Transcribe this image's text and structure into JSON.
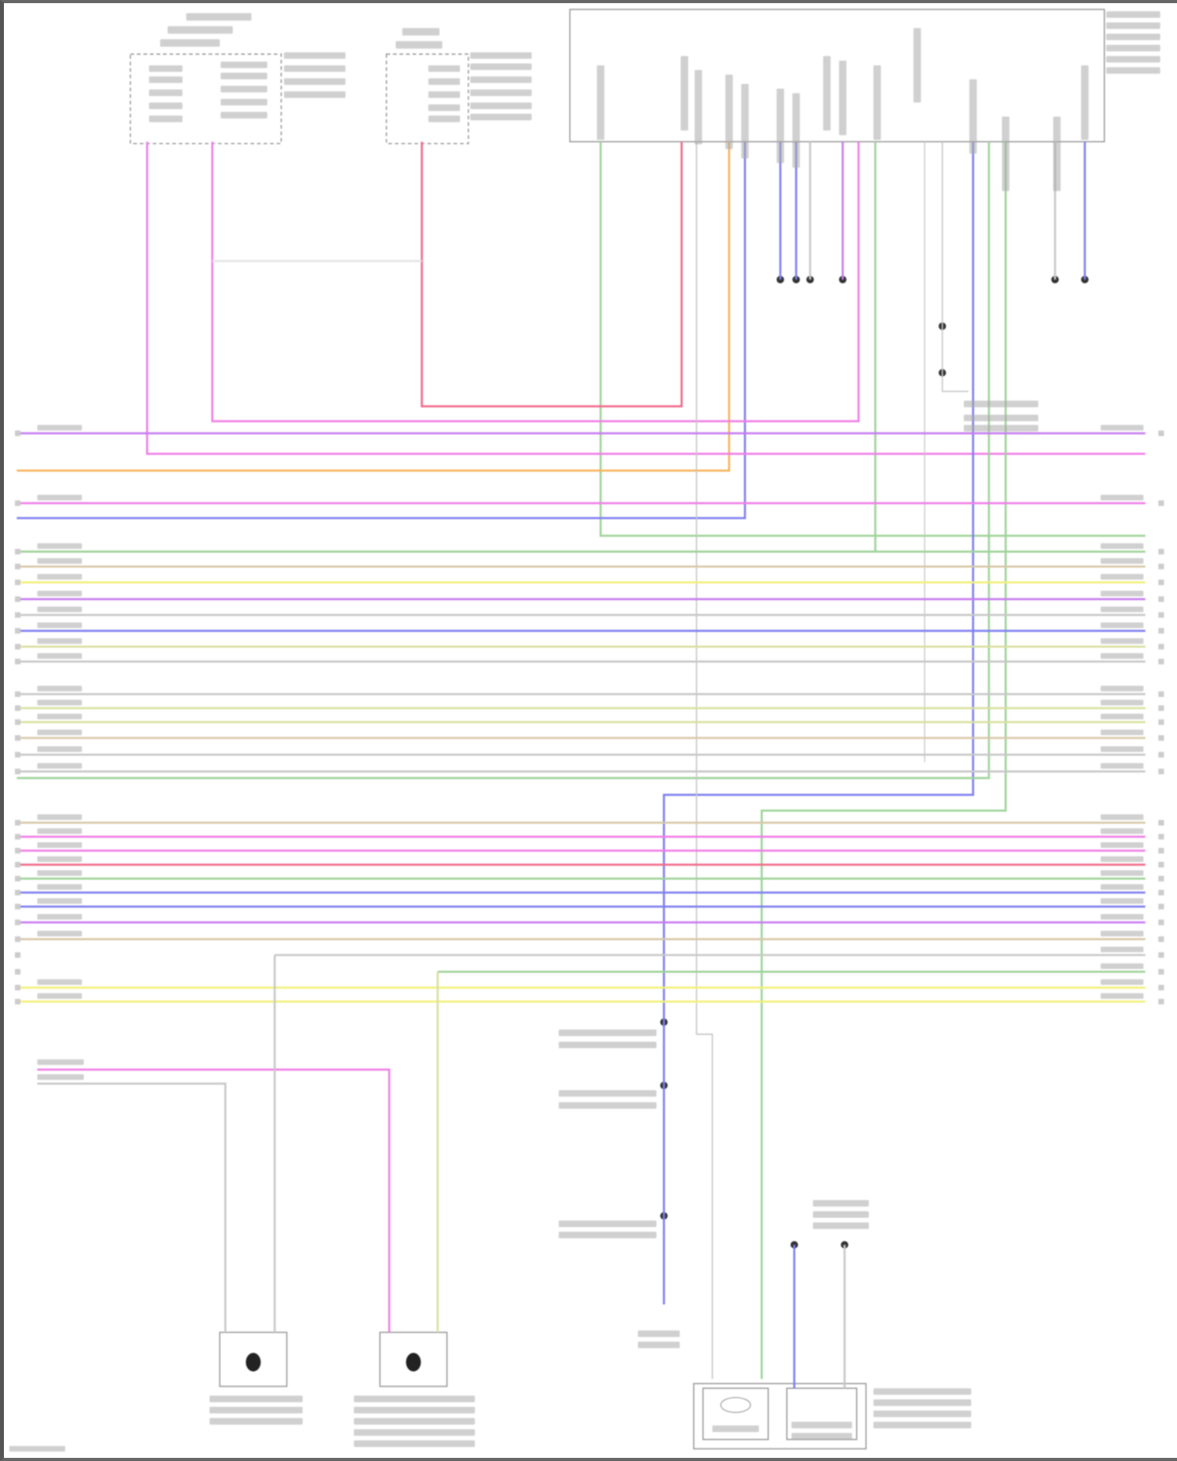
{
  "diagram": {
    "colors": {
      "pink": "#f07ee6",
      "violet": "#c77cf0",
      "red": "#f06a8a",
      "orange": "#f7b45c",
      "yellow": "#f2f07a",
      "blue": "#7f7ff0",
      "green": "#9fd39a",
      "tan": "#d8c8a8",
      "gray": "#c8c8c8",
      "olive": "#d9e0a0",
      "label": "#aaaaaa"
    },
    "bus_wire_colors": [
      "violet",
      "pink",
      "orange",
      "pink",
      "blue",
      "green",
      "green",
      "tan",
      "yellow",
      "violet",
      "gray",
      "blue",
      "olive",
      "gray",
      "gray",
      "olive",
      "olive",
      "tan",
      "gray",
      "gray",
      "tan",
      "pink",
      "pink",
      "red",
      "green",
      "blue",
      "blue",
      "violet",
      "tan",
      "gray",
      "green",
      "yellow",
      "yellow",
      "pink",
      "gray"
    ]
  }
}
